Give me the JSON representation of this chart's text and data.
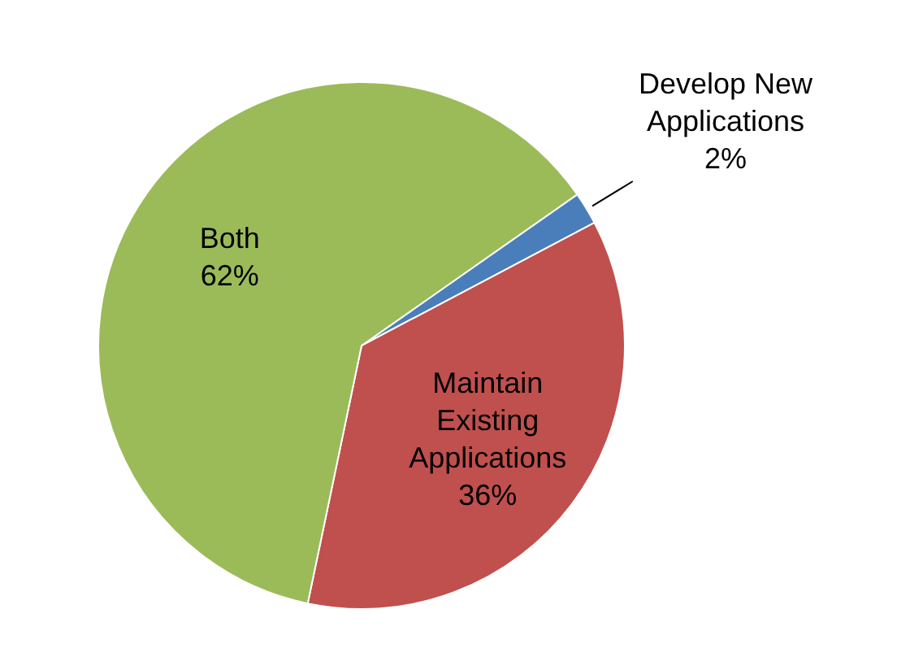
{
  "chart_data": {
    "type": "pie",
    "categories": [
      "Develop New Applications",
      "Maintain Existing Applications",
      "Both"
    ],
    "values": [
      2,
      36,
      62
    ],
    "colors": [
      "#4a7ebb",
      "#c0504d",
      "#9bbb59"
    ],
    "value_labels": [
      "2%",
      "36%",
      "62%"
    ],
    "legend": false
  }
}
